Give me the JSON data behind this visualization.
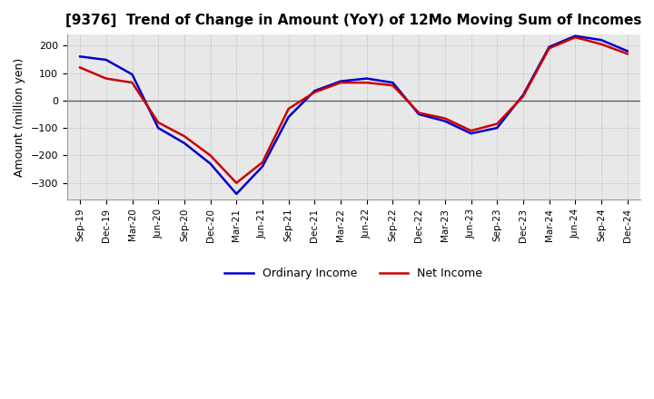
{
  "title": "[9376]  Trend of Change in Amount (YoY) of 12Mo Moving Sum of Incomes",
  "ylabel": "Amount (million yen)",
  "background_color": "#ffffff",
  "plot_bg_color": "#e8e8e8",
  "grid_color": "#aaaaaa",
  "ordinary_income_color": "#0000cc",
  "net_income_color": "#cc0000",
  "ordinary_income_label": "Ordinary Income",
  "net_income_label": "Net Income",
  "x_labels": [
    "Sep-19",
    "Dec-19",
    "Mar-20",
    "Jun-20",
    "Sep-20",
    "Dec-20",
    "Mar-21",
    "Jun-21",
    "Sep-21",
    "Dec-21",
    "Mar-22",
    "Jun-22",
    "Sep-22",
    "Dec-22",
    "Mar-23",
    "Jun-23",
    "Sep-23",
    "Dec-23",
    "Mar-24",
    "Jun-24",
    "Sep-24",
    "Dec-24"
  ],
  "ordinary_income": [
    160,
    148,
    95,
    -100,
    -155,
    -230,
    -340,
    -240,
    -60,
    35,
    70,
    80,
    65,
    -50,
    -75,
    -120,
    -100,
    20,
    195,
    235,
    220,
    180
  ],
  "net_income": [
    120,
    80,
    65,
    -80,
    -130,
    -200,
    -300,
    -225,
    -30,
    30,
    65,
    65,
    55,
    -45,
    -65,
    -110,
    -85,
    15,
    190,
    230,
    205,
    170
  ],
  "ylim": [
    -360,
    240
  ],
  "yticks": [
    -300,
    -200,
    -100,
    0,
    100,
    200
  ]
}
